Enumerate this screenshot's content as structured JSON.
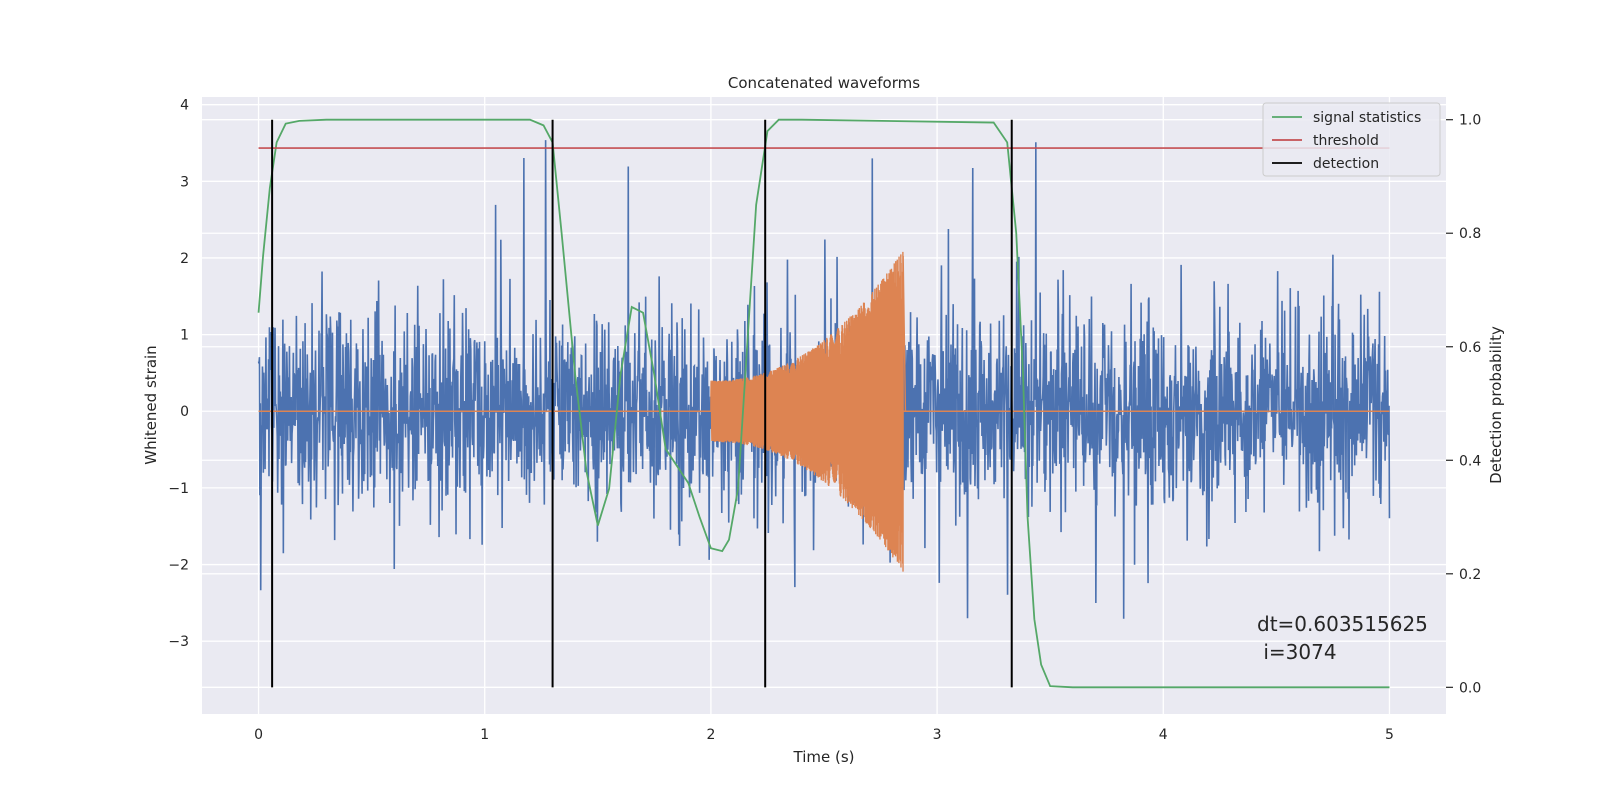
{
  "chart_data": {
    "type": "line",
    "title": "Concatenated waveforms",
    "xlabel": "Time (s)",
    "ylabel_left": "Whitened strain",
    "ylabel_right": "Detection probability",
    "xlim": [
      -0.25,
      5.25
    ],
    "ylim_left": [
      -3.95,
      4.1
    ],
    "ylim_right": [
      -0.047,
      1.04
    ],
    "x_ticks": [
      0,
      1,
      2,
      3,
      4,
      5
    ],
    "y_ticks_left": [
      -3,
      -2,
      -1,
      0,
      1,
      2,
      3,
      4
    ],
    "y_ticks_right": [
      0.0,
      0.2,
      0.4,
      0.6,
      0.8,
      1.0
    ],
    "x_tick_labels": [
      "0",
      "1",
      "2",
      "3",
      "4",
      "5"
    ],
    "y_tick_labels_left": [
      "−3",
      "−2",
      "−1",
      "0",
      "1",
      "2",
      "3",
      "4"
    ],
    "y_tick_labels_right": [
      "0.0",
      "0.2",
      "0.4",
      "0.6",
      "0.8",
      "1.0"
    ],
    "grid": true,
    "legend": {
      "position": "upper-right",
      "entries": [
        {
          "label": "signal statistics",
          "color": "#55a868"
        },
        {
          "label": "threshold",
          "color": "#c44e52"
        },
        {
          "label": "detection",
          "color": "#000000"
        }
      ]
    },
    "series": [
      {
        "name": "noise",
        "axis": "left",
        "color": "#4c72b0",
        "x_range": [
          0,
          5
        ],
        "amplitude_note": "whitened noise, typical |y| < 1.5, peaks up to ~3.5"
      },
      {
        "name": "injected waveform",
        "axis": "left",
        "color": "#dd8452",
        "chirp": {
          "start": 2.0,
          "end": 2.85,
          "amp_start": 0.4,
          "amp_end": 2.1
        }
      },
      {
        "name": "signal statistics",
        "axis": "right",
        "color": "#55a868",
        "x": [
          0.0,
          0.02,
          0.05,
          0.08,
          0.12,
          0.18,
          0.3,
          1.2,
          1.26,
          1.3,
          1.34,
          1.4,
          1.45,
          1.5,
          1.55,
          1.6,
          1.65,
          1.7,
          1.75,
          1.8,
          1.85,
          1.9,
          1.95,
          2.0,
          2.05,
          2.08,
          2.12,
          2.16,
          2.2,
          2.25,
          2.3,
          2.4,
          3.25,
          3.31,
          3.35,
          3.38,
          3.4,
          3.43,
          3.46,
          3.5,
          3.6,
          5.0
        ],
        "y": [
          0.66,
          0.76,
          0.88,
          0.96,
          0.993,
          0.998,
          1.0,
          1.0,
          0.99,
          0.96,
          0.8,
          0.55,
          0.38,
          0.285,
          0.35,
          0.55,
          0.67,
          0.66,
          0.55,
          0.42,
          0.39,
          0.36,
          0.3,
          0.245,
          0.24,
          0.26,
          0.35,
          0.6,
          0.85,
          0.98,
          1.0,
          1.0,
          0.995,
          0.96,
          0.8,
          0.55,
          0.3,
          0.12,
          0.04,
          0.002,
          0.0,
          0.0
        ]
      },
      {
        "name": "threshold",
        "axis": "right",
        "color": "#c44e52",
        "value": 0.95,
        "x_range": [
          0,
          5
        ]
      }
    ],
    "detections": [
      0.06,
      1.3,
      2.24,
      3.33
    ],
    "annotation": {
      "line1": "dt=0.603515625",
      "line2": " i=3074"
    }
  }
}
